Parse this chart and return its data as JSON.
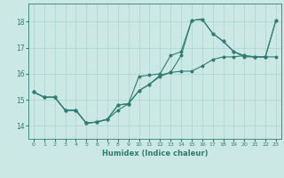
{
  "title": "",
  "xlabel": "Humidex (Indice chaleur)",
  "bg_color": "#cce8e4",
  "line_color": "#2e7d72",
  "grid_color": "#aad4cc",
  "xlim": [
    -0.5,
    23.5
  ],
  "ylim": [
    13.5,
    18.7
  ],
  "yticks": [
    14,
    15,
    16,
    17,
    18
  ],
  "xticks": [
    0,
    1,
    2,
    3,
    4,
    5,
    6,
    7,
    8,
    9,
    10,
    11,
    12,
    13,
    14,
    15,
    16,
    17,
    18,
    19,
    20,
    21,
    22,
    23
  ],
  "line1_x": [
    0,
    1,
    2,
    3,
    4,
    5,
    6,
    7,
    8,
    9,
    10,
    11,
    12,
    13,
    14,
    15,
    16,
    17,
    18,
    19,
    20,
    21,
    22,
    23
  ],
  "line1_y": [
    15.3,
    15.1,
    15.1,
    14.6,
    14.6,
    14.1,
    14.15,
    14.25,
    14.6,
    14.85,
    15.35,
    15.6,
    15.9,
    16.05,
    16.1,
    16.1,
    16.3,
    16.55,
    16.65,
    16.65,
    16.7,
    16.65,
    16.65,
    16.65
  ],
  "line2_x": [
    0,
    1,
    2,
    3,
    4,
    5,
    6,
    7,
    8,
    9,
    10,
    11,
    12,
    13,
    14,
    15,
    16,
    17,
    18,
    19,
    20,
    21,
    22,
    23
  ],
  "line2_y": [
    15.3,
    15.1,
    15.1,
    14.6,
    14.6,
    14.1,
    14.15,
    14.25,
    14.8,
    14.85,
    15.9,
    15.95,
    16.0,
    16.7,
    16.85,
    18.05,
    18.1,
    17.55,
    17.25,
    16.85,
    16.65,
    16.65,
    16.65,
    18.05
  ],
  "line3_x": [
    0,
    1,
    2,
    3,
    4,
    5,
    6,
    7,
    8,
    9,
    10,
    11,
    12,
    13,
    14,
    15,
    16,
    17,
    18,
    19,
    20,
    21,
    22,
    23
  ],
  "line3_y": [
    15.3,
    15.1,
    15.1,
    14.6,
    14.6,
    14.1,
    14.15,
    14.25,
    14.8,
    14.85,
    15.35,
    15.6,
    15.95,
    16.05,
    16.7,
    18.05,
    18.1,
    17.55,
    17.25,
    16.85,
    16.7,
    16.65,
    16.65,
    18.05
  ]
}
